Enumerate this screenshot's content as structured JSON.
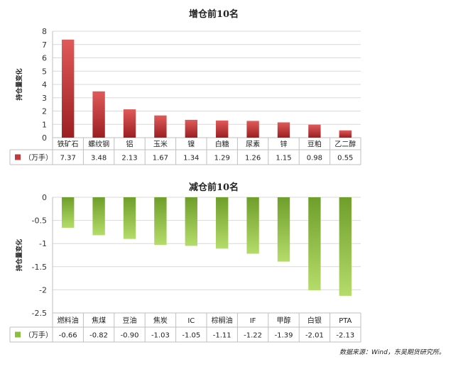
{
  "source_note": "数据来源：Wind，东吴期货研究所。",
  "chart_data": [
    {
      "type": "bar",
      "title": "增仓前10名",
      "ylabel": "持仓量变化",
      "unit_label": "（万手）",
      "ylim": [
        0,
        8
      ],
      "yticks": [
        0,
        1,
        2,
        3,
        4,
        5,
        6,
        7,
        8
      ],
      "categories": [
        "铁矿石",
        "螺纹钢",
        "铝",
        "玉米",
        "镍",
        "白糖",
        "尿素",
        "锌",
        "豆粕",
        "乙二醇"
      ],
      "values": [
        7.37,
        3.48,
        2.13,
        1.67,
        1.34,
        1.29,
        1.26,
        1.15,
        0.98,
        0.55
      ],
      "value_labels": [
        "7.37",
        "3.48",
        "2.13",
        "1.67",
        "1.34",
        "1.29",
        "1.26",
        "1.15",
        "0.98",
        "0.55"
      ],
      "color": "#c0393b",
      "grid": true
    },
    {
      "type": "bar",
      "title": "减仓前10名",
      "ylabel": "持仓量变化",
      "unit_label": "（万手）",
      "ylim": [
        -2.5,
        0
      ],
      "yticks": [
        "0",
        "-0.5",
        "-1",
        "-1.5",
        "-2",
        "-2.5"
      ],
      "categories": [
        "燃料油",
        "焦煤",
        "豆油",
        "焦炭",
        "IC",
        "棕榈油",
        "IF",
        "甲醇",
        "白银",
        "PTA"
      ],
      "values": [
        -0.66,
        -0.82,
        -0.9,
        -1.03,
        -1.05,
        -1.11,
        -1.22,
        -1.39,
        -2.01,
        -2.13
      ],
      "value_labels": [
        "-0.66",
        "-0.82",
        "-0.90",
        "-1.03",
        "-1.05",
        "-1.11",
        "-1.22",
        "-1.39",
        "-2.01",
        "-2.13"
      ],
      "color": "#8cbf3f",
      "grid": true
    }
  ]
}
